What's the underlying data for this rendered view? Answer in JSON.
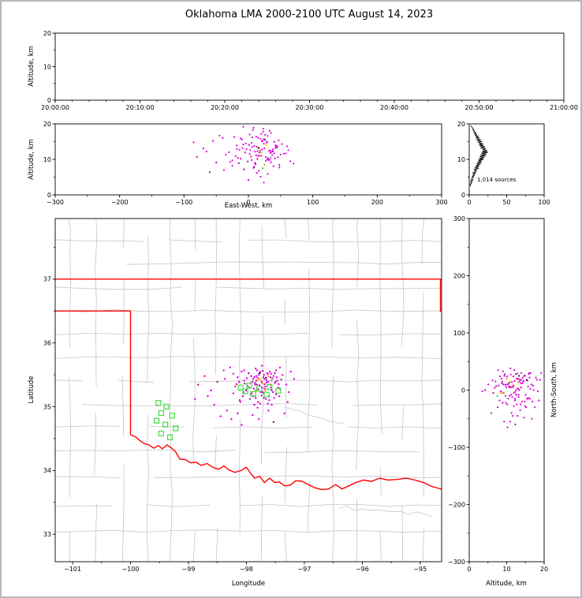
{
  "title": "Oklahoma LMA 2000-2100 UTC August 14, 2023",
  "labels": {
    "alt_axis": "Altitude, km",
    "ew_axis": "East-West, km",
    "ns_axis": "North-South, km",
    "lon_axis": "Longitude",
    "lat_axis": "Latitude",
    "sources_legend": "1,014 sources"
  },
  "axes": {
    "time": {
      "xticks": [
        "20:00:00",
        "20:10:00",
        "20:20:00",
        "20:30:00",
        "20:40:00",
        "20:50:00",
        "21:00:00"
      ],
      "yticks": [
        0,
        10,
        20
      ],
      "yrange": [
        0,
        20
      ]
    },
    "ew": {
      "xticks": [
        -300,
        -200,
        -100,
        0,
        100,
        200,
        300
      ],
      "xrange": [
        -300,
        300
      ],
      "yticks": [
        0,
        10,
        20
      ],
      "yrange": [
        0,
        20
      ]
    },
    "hist": {
      "xticks": [
        0,
        50,
        100
      ],
      "xrange": [
        0,
        100
      ],
      "yticks": [
        0,
        10,
        20
      ],
      "yrange": [
        0,
        20
      ]
    },
    "map": {
      "xticks": [
        -101,
        -100,
        -99,
        -98,
        -97,
        -96,
        -95
      ],
      "lonrange": [
        -101.3,
        -94.63
      ],
      "yticks": [
        33,
        34,
        35,
        36,
        37
      ],
      "latrange": [
        32.57,
        37.95
      ]
    },
    "ns": {
      "xticks": [
        0,
        10,
        20
      ],
      "xrange": [
        0,
        20
      ],
      "yticks": [
        -300,
        -200,
        -100,
        0,
        100,
        200,
        300
      ],
      "yrange": [
        -300,
        300
      ]
    }
  },
  "style": {
    "point_palette": [
      "#dd00dd",
      "#aa00bb",
      "#ee0088",
      "#ff8800",
      "#22cc22",
      "#222222",
      "#ffcc00"
    ],
    "state_border": "#ff0000",
    "county_line": "#c6c6c6",
    "station_color": "#44dd44",
    "hist_line": "#000000"
  },
  "chart_data": {
    "type": "scatter",
    "title": "Oklahoma LMA 2000-2100 UTC August 14, 2023",
    "projection_center": {
      "lon": -97.95,
      "lat": 35.3,
      "km_per_deg_lon": 90.7,
      "km_per_deg_lat": 111.0
    },
    "sources_ew_ns_alt_color": [
      [
        12,
        5,
        11.2,
        0
      ],
      [
        18,
        -8,
        12.5,
        0
      ],
      [
        5,
        10,
        9.8,
        0
      ],
      [
        25,
        2,
        13.1,
        0
      ],
      [
        31,
        -15,
        10.4,
        0
      ],
      [
        -8,
        12,
        14.2,
        0
      ],
      [
        -15,
        -22,
        8.9,
        1
      ],
      [
        40,
        8,
        11.7,
        0
      ],
      [
        22,
        18,
        15.3,
        0
      ],
      [
        8,
        -30,
        7.6,
        1
      ],
      [
        -3,
        3,
        12.9,
        0
      ],
      [
        15,
        22,
        16.1,
        0
      ],
      [
        35,
        -5,
        9.2,
        0
      ],
      [
        44,
        12,
        13.8,
        0
      ],
      [
        -20,
        6,
        10.9,
        2
      ],
      [
        2,
        -12,
        11.5,
        0
      ],
      [
        28,
        25,
        14.7,
        0
      ],
      [
        10,
        -18,
        12.2,
        0
      ],
      [
        -12,
        28,
        15.9,
        0
      ],
      [
        48,
        -2,
        8.4,
        1
      ],
      [
        20,
        0,
        17.2,
        0
      ],
      [
        6,
        15,
        13.5,
        0
      ],
      [
        -25,
        -10,
        9.7,
        0
      ],
      [
        38,
        20,
        12.8,
        0
      ],
      [
        14,
        -25,
        10.1,
        2
      ],
      [
        30,
        10,
        16.6,
        0
      ],
      [
        -5,
        -5,
        11.9,
        0
      ],
      [
        24,
        15,
        14.4,
        0
      ],
      [
        9,
        8,
        7.9,
        1
      ],
      [
        42,
        -12,
        13.2,
        0
      ],
      [
        17,
        27,
        11.1,
        0
      ],
      [
        -10,
        -15,
        15.6,
        0
      ],
      [
        33,
        5,
        9.9,
        0
      ],
      [
        3,
        20,
        12.6,
        0
      ],
      [
        26,
        -20,
        16.9,
        0
      ],
      [
        11,
        12,
        8.7,
        2
      ],
      [
        -18,
        18,
        13.9,
        0
      ],
      [
        46,
        6,
        10.6,
        0
      ],
      [
        21,
        -8,
        15.1,
        0
      ],
      [
        7,
        -2,
        18.3,
        0
      ],
      [
        36,
        16,
        12.1,
        0
      ],
      [
        -1,
        25,
        9.4,
        1
      ],
      [
        29,
        -28,
        14.9,
        0
      ],
      [
        16,
        4,
        6.8,
        0
      ],
      [
        50,
        14,
        11.4,
        0
      ],
      [
        13,
        -35,
        13.6,
        0
      ],
      [
        -22,
        2,
        16.3,
        0
      ],
      [
        39,
        -18,
        8.1,
        0
      ],
      [
        23,
        22,
        17.8,
        0
      ],
      [
        4,
        -10,
        10.8,
        2
      ],
      [
        32,
        28,
        12.4,
        0
      ],
      [
        19,
        -14,
        15.8,
        0
      ],
      [
        -7,
        7,
        7.2,
        1
      ],
      [
        45,
        0,
        13.4,
        0
      ],
      [
        27,
        9,
        9.6,
        0
      ],
      [
        1,
        -20,
        14.1,
        0
      ],
      [
        34,
        24,
        11.8,
        0
      ],
      [
        12,
        30,
        16.4,
        0
      ],
      [
        -14,
        -25,
        12.7,
        0
      ],
      [
        41,
        10,
        10.3,
        0
      ],
      [
        8,
        18,
        18.9,
        0
      ],
      [
        25,
        -5,
        8.5,
        3
      ],
      [
        15,
        14,
        13.0,
        3
      ],
      [
        30,
        20,
        10.0,
        3
      ],
      [
        20,
        8,
        12.0,
        3
      ],
      [
        10,
        -5,
        9.0,
        3
      ],
      [
        18,
        15,
        11.0,
        6
      ],
      [
        28,
        3,
        14.0,
        6
      ],
      [
        22,
        -10,
        7.5,
        4
      ],
      [
        35,
        12,
        10.5,
        4
      ],
      [
        16,
        25,
        13.3,
        5
      ],
      [
        26,
        17,
        15.5,
        5
      ],
      [
        -35,
        -40,
        11.3,
        0
      ],
      [
        -50,
        10,
        9.1,
        1
      ],
      [
        -65,
        -15,
        12.2,
        0
      ],
      [
        -80,
        5,
        10.7,
        2
      ],
      [
        60,
        -25,
        13.7,
        0
      ],
      [
        70,
        15,
        8.8,
        0
      ],
      [
        -40,
        30,
        16.0,
        0
      ],
      [
        55,
        -45,
        11.6,
        0
      ],
      [
        -28,
        -55,
        9.3,
        0
      ],
      [
        38,
        -60,
        12.3,
        1
      ],
      [
        5,
        -48,
        14.6,
        0
      ],
      [
        -12,
        -65,
        10.2,
        0
      ],
      [
        48,
        35,
        7.7,
        0
      ],
      [
        -55,
        -30,
        15.2,
        0
      ],
      [
        20,
        38,
        11.0,
        0
      ],
      [
        -70,
        20,
        13.1,
        2
      ],
      [
        65,
        28,
        9.5,
        0
      ],
      [
        -45,
        -50,
        16.7,
        0
      ],
      [
        30,
        -40,
        5.9,
        0
      ],
      [
        -30,
        35,
        12.0,
        0
      ],
      [
        52,
        22,
        14.3,
        0
      ],
      [
        -60,
        -5,
        6.4,
        1
      ],
      [
        15,
        -55,
        10.9,
        0
      ],
      [
        42,
        30,
        13.9,
        0
      ],
      [
        -25,
        24,
        8.2,
        0
      ],
      [
        58,
        5,
        11.7,
        0
      ],
      [
        -85,
        -20,
        14.8,
        0
      ],
      [
        35,
        -30,
        17.5,
        0
      ],
      [
        10,
        33,
        9.0,
        0
      ],
      [
        -18,
        -45,
        12.9,
        0
      ],
      [
        47,
        -15,
        15.4,
        0
      ],
      [
        0,
        0,
        4.2,
        1
      ],
      [
        24,
        -2,
        3.5,
        0
      ],
      [
        -8,
        30,
        19.2,
        0
      ],
      [
        33,
        18,
        18.1,
        0
      ],
      [
        19,
        10,
        5.1,
        0
      ],
      [
        -38,
        15,
        7.0,
        0
      ],
      [
        62,
        -8,
        12.6,
        0
      ],
      [
        14,
        -3,
        12.3,
        0
      ],
      [
        27,
        13,
        10.7,
        0
      ],
      [
        9,
        5,
        13.8,
        0
      ],
      [
        37,
        -8,
        11.2,
        0
      ],
      [
        -4,
        16,
        14.5,
        0
      ],
      [
        21,
        29,
        12.8,
        0
      ],
      [
        31,
        -22,
        9.8,
        0
      ],
      [
        6,
        -15,
        16.2,
        0
      ],
      [
        43,
        18,
        13.5,
        0
      ],
      [
        17,
        -28,
        11.9,
        0
      ],
      [
        -16,
        10,
        10.4,
        0
      ],
      [
        24,
        6,
        15.7,
        0
      ],
      [
        11,
        20,
        8.6,
        0
      ],
      [
        34,
        0,
        12.5,
        0
      ],
      [
        2,
        8,
        17.0,
        0
      ],
      [
        29,
        24,
        10.1,
        0
      ],
      [
        -9,
        -8,
        13.2,
        0
      ],
      [
        40,
        25,
        14.9,
        1
      ],
      [
        13,
        17,
        6.2,
        0
      ],
      [
        23,
        -18,
        18.6,
        0
      ]
    ],
    "stations_lon_lat": [
      [
        -99.52,
        35.06
      ],
      [
        -99.38,
        35.0
      ],
      [
        -99.47,
        34.9
      ],
      [
        -99.28,
        34.86
      ],
      [
        -99.55,
        34.78
      ],
      [
        -99.4,
        34.72
      ],
      [
        -99.22,
        34.66
      ],
      [
        -99.47,
        34.58
      ],
      [
        -99.32,
        34.52
      ],
      [
        -98.1,
        35.3
      ],
      [
        -98.02,
        35.24
      ],
      [
        -97.95,
        35.33
      ],
      [
        -97.88,
        35.2
      ],
      [
        -97.78,
        35.28
      ],
      [
        -97.65,
        35.19
      ],
      [
        -97.6,
        35.31
      ],
      [
        -97.45,
        35.25
      ]
    ],
    "altitude_count_profile": [
      [
        2.5,
        1
      ],
      [
        2.75,
        2
      ],
      [
        3.0,
        1
      ],
      [
        3.25,
        3
      ],
      [
        3.5,
        2
      ],
      [
        3.75,
        4
      ],
      [
        4.0,
        2
      ],
      [
        4.25,
        5
      ],
      [
        4.5,
        3
      ],
      [
        4.75,
        4
      ],
      [
        5.0,
        6
      ],
      [
        5.25,
        4
      ],
      [
        5.5,
        7
      ],
      [
        5.75,
        5
      ],
      [
        6.0,
        8
      ],
      [
        6.25,
        5
      ],
      [
        6.5,
        9
      ],
      [
        6.75,
        7
      ],
      [
        7.0,
        10
      ],
      [
        7.25,
        7
      ],
      [
        7.5,
        12
      ],
      [
        7.75,
        8
      ],
      [
        8.0,
        13
      ],
      [
        8.25,
        9
      ],
      [
        8.5,
        14
      ],
      [
        8.75,
        10
      ],
      [
        9.0,
        16
      ],
      [
        9.25,
        11
      ],
      [
        9.5,
        17
      ],
      [
        9.75,
        12
      ],
      [
        10.0,
        19
      ],
      [
        10.25,
        13
      ],
      [
        10.5,
        20
      ],
      [
        10.75,
        14
      ],
      [
        11.0,
        22
      ],
      [
        11.25,
        15
      ],
      [
        11.5,
        23
      ],
      [
        11.75,
        16
      ],
      [
        12.0,
        25
      ],
      [
        12.25,
        17
      ],
      [
        12.5,
        24
      ],
      [
        12.75,
        18
      ],
      [
        13.0,
        22
      ],
      [
        13.25,
        15
      ],
      [
        13.5,
        21
      ],
      [
        13.75,
        14
      ],
      [
        14.0,
        19
      ],
      [
        14.25,
        13
      ],
      [
        14.5,
        18
      ],
      [
        14.75,
        12
      ],
      [
        15.0,
        16
      ],
      [
        15.25,
        11
      ],
      [
        15.5,
        15
      ],
      [
        15.75,
        10
      ],
      [
        16.0,
        13
      ],
      [
        16.25,
        9
      ],
      [
        16.5,
        12
      ],
      [
        16.75,
        8
      ],
      [
        17.0,
        10
      ],
      [
        17.25,
        7
      ],
      [
        17.5,
        9
      ],
      [
        17.75,
        6
      ],
      [
        18.0,
        7
      ],
      [
        18.25,
        5
      ],
      [
        18.5,
        6
      ],
      [
        18.75,
        4
      ],
      [
        19.0,
        4
      ],
      [
        19.25,
        3
      ],
      [
        19.5,
        2
      ]
    ],
    "source_count_label": "1,014 sources",
    "state_border": {
      "north_lat37": [
        [
          -101.3,
          37.0
        ],
        [
          -94.61,
          37.0
        ]
      ],
      "panhandle_south": [
        [
          -101.3,
          36.5
        ],
        [
          -100.0,
          36.5
        ]
      ],
      "west_lon100": [
        [
          -100.0,
          36.5
        ],
        [
          -100.0,
          34.56
        ]
      ],
      "northeast_corner": [
        [
          -94.65,
          37.0
        ],
        [
          -94.65,
          36.5
        ],
        [
          -94.61,
          36.5
        ]
      ],
      "red_river": [
        [
          -100.0,
          34.56
        ],
        [
          -99.92,
          34.53
        ],
        [
          -99.84,
          34.47
        ],
        [
          -99.76,
          34.42
        ],
        [
          -99.68,
          34.4
        ],
        [
          -99.6,
          34.35
        ],
        [
          -99.52,
          34.39
        ],
        [
          -99.45,
          34.34
        ],
        [
          -99.37,
          34.4
        ],
        [
          -99.29,
          34.35
        ],
        [
          -99.22,
          34.29
        ],
        [
          -99.15,
          34.18
        ],
        [
          -99.05,
          34.17
        ],
        [
          -98.96,
          34.12
        ],
        [
          -98.87,
          34.13
        ],
        [
          -98.78,
          34.08
        ],
        [
          -98.68,
          34.11
        ],
        [
          -98.58,
          34.05
        ],
        [
          -98.48,
          34.02
        ],
        [
          -98.39,
          34.07
        ],
        [
          -98.3,
          34.01
        ],
        [
          -98.2,
          33.97
        ],
        [
          -98.09,
          34.0
        ],
        [
          -98.0,
          34.05
        ],
        [
          -97.93,
          33.96
        ],
        [
          -97.86,
          33.88
        ],
        [
          -97.77,
          33.91
        ],
        [
          -97.69,
          33.81
        ],
        [
          -97.6,
          33.88
        ],
        [
          -97.51,
          33.81
        ],
        [
          -97.43,
          33.82
        ],
        [
          -97.34,
          33.76
        ],
        [
          -97.24,
          33.77
        ],
        [
          -97.15,
          33.84
        ],
        [
          -97.04,
          33.83
        ],
        [
          -96.93,
          33.78
        ],
        [
          -96.82,
          33.73
        ],
        [
          -96.7,
          33.7
        ],
        [
          -96.58,
          33.71
        ],
        [
          -96.46,
          33.78
        ],
        [
          -96.35,
          33.71
        ],
        [
          -96.23,
          33.76
        ],
        [
          -96.11,
          33.81
        ],
        [
          -95.98,
          33.85
        ],
        [
          -95.84,
          33.83
        ],
        [
          -95.7,
          33.88
        ],
        [
          -95.55,
          33.85
        ],
        [
          -95.4,
          33.86
        ],
        [
          -95.24,
          33.88
        ],
        [
          -95.09,
          33.85
        ],
        [
          -94.94,
          33.81
        ],
        [
          -94.8,
          33.75
        ],
        [
          -94.68,
          33.72
        ],
        [
          -94.61,
          33.7
        ]
      ]
    }
  }
}
